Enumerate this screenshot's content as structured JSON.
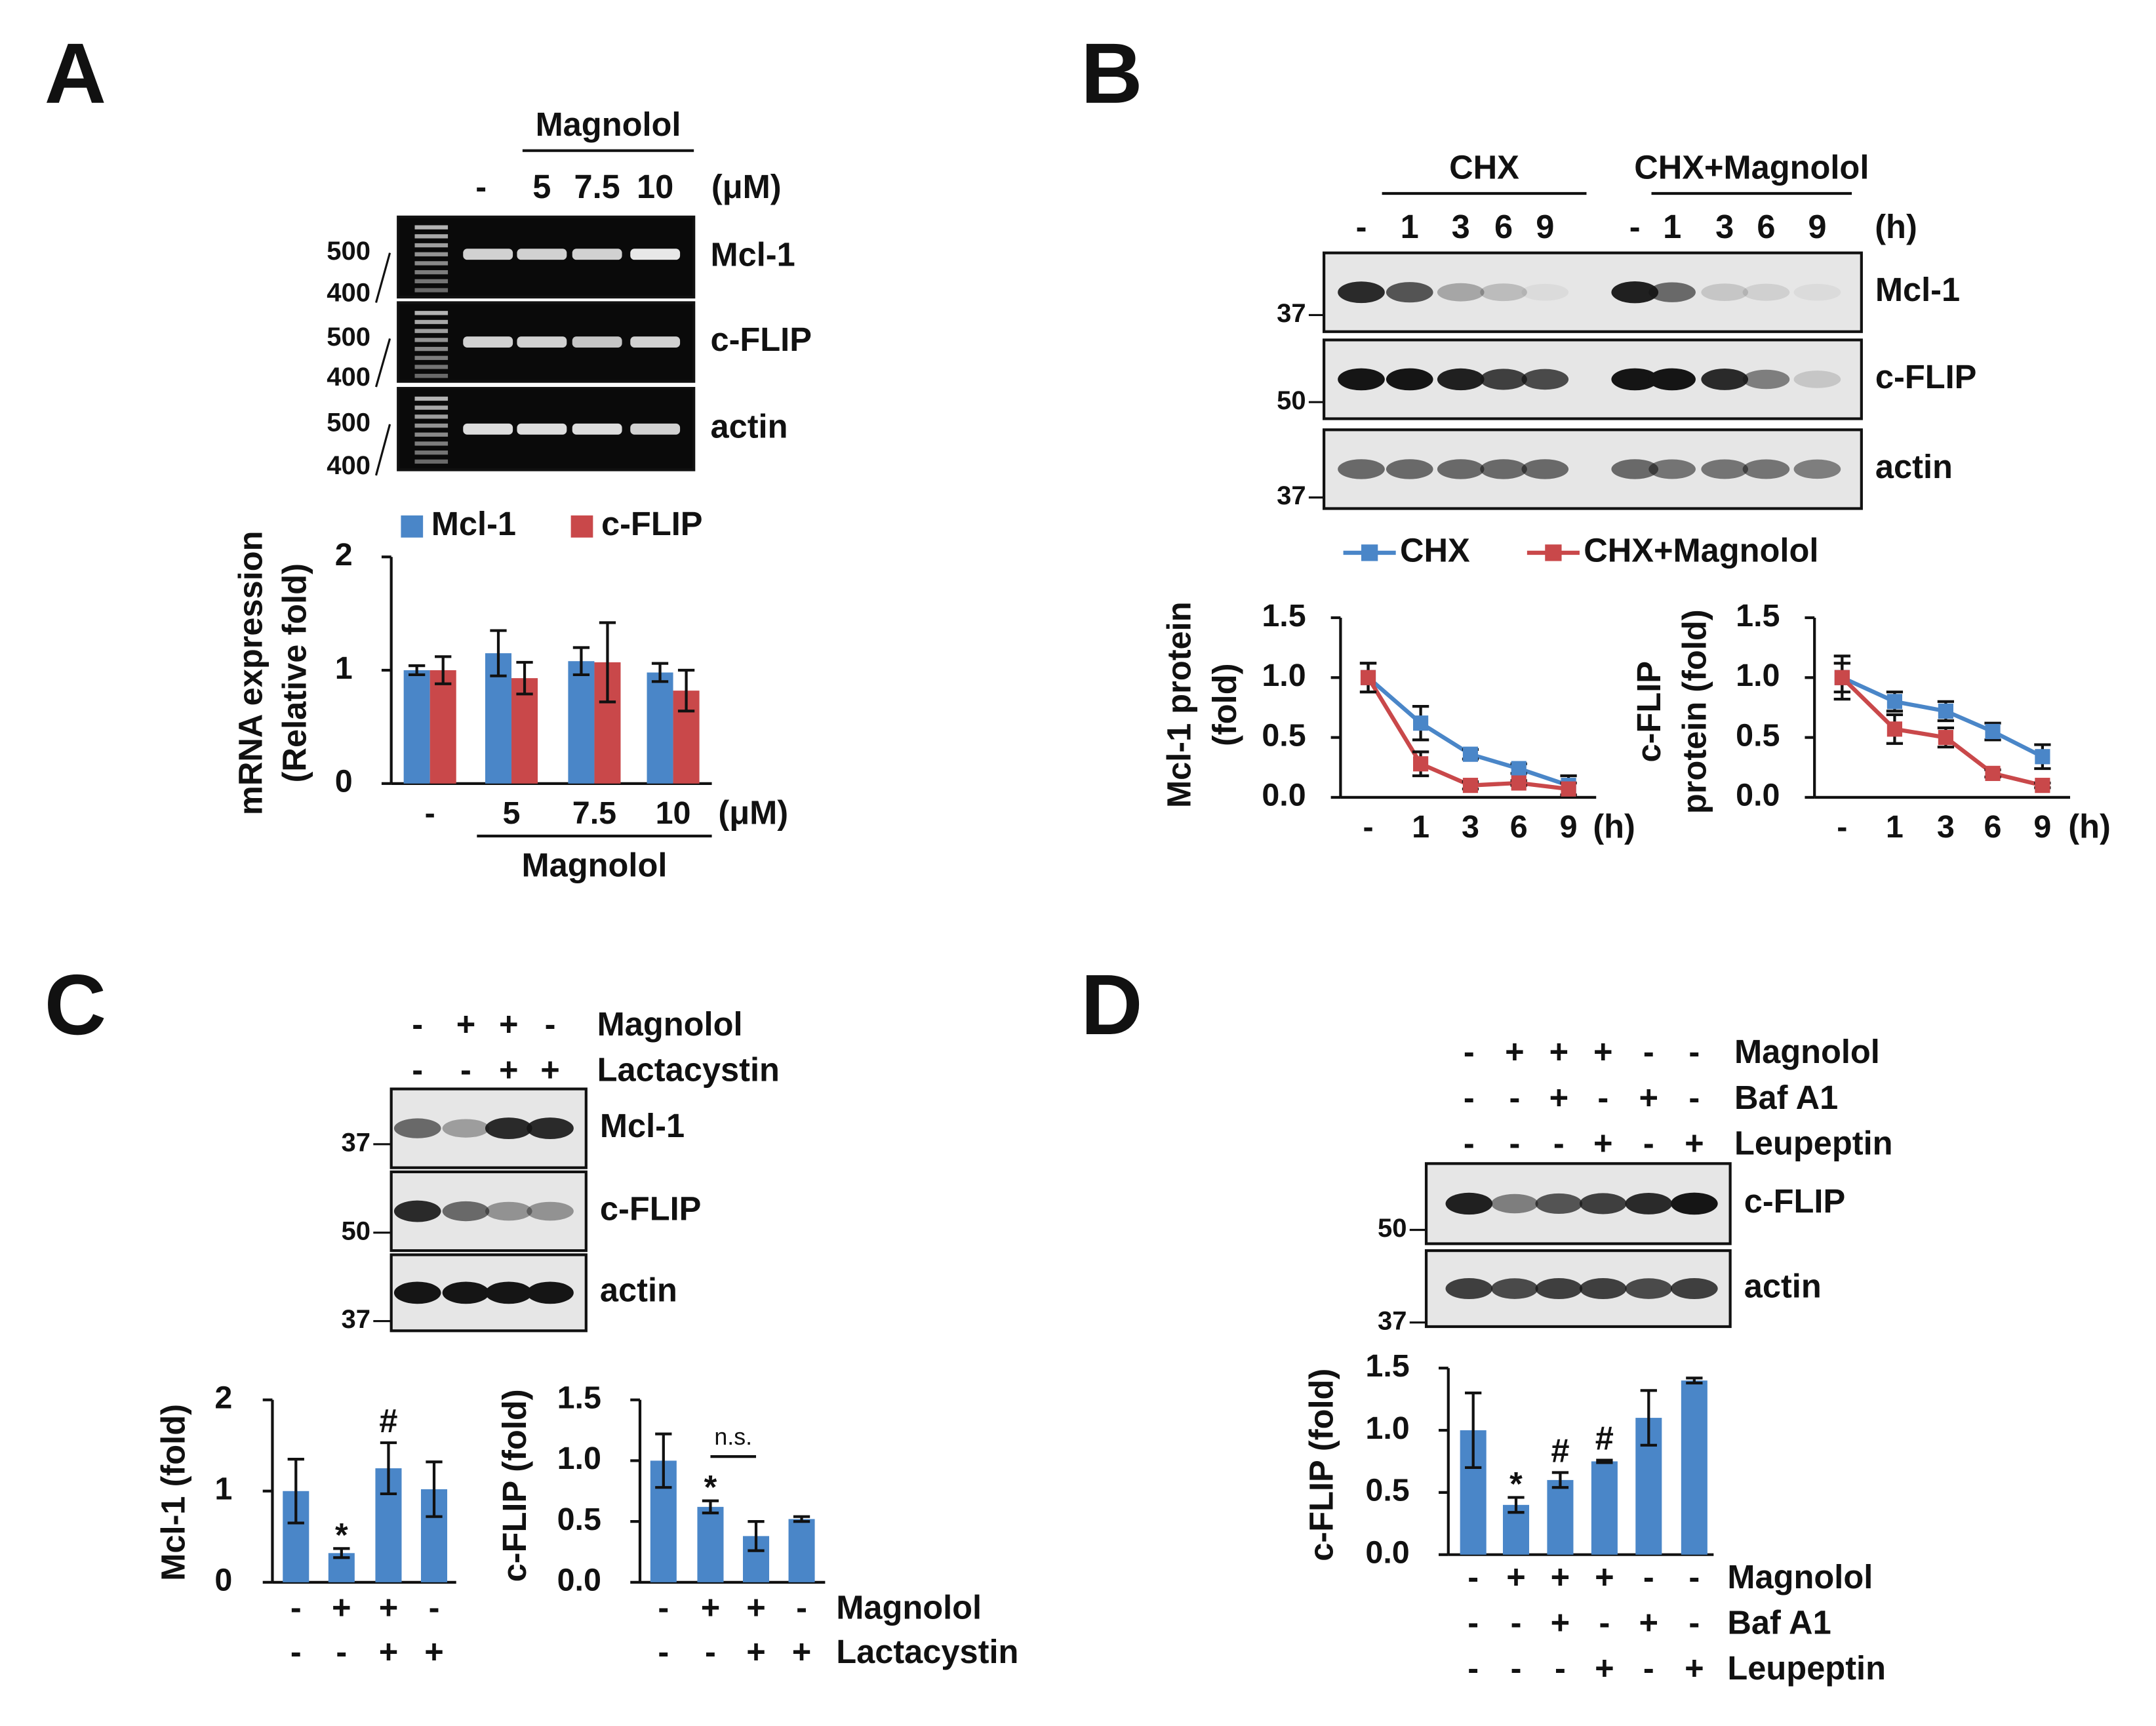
{
  "panel_labels": [
    "A",
    "B",
    "C",
    "D"
  ],
  "blots": [
    {
      "header_groups": [
        {
          "label": "Magnolol"
        }
      ],
      "lanes": [
        "-",
        "5",
        "7.5",
        "10"
      ],
      "unit": "(μM)",
      "rows": [
        {
          "label": "Mcl-1",
          "markers": [
            "500",
            "400"
          ]
        },
        {
          "label": "c-FLIP",
          "markers": [
            "500",
            "400"
          ]
        },
        {
          "label": "actin",
          "markers": [
            "500",
            "400"
          ]
        }
      ]
    },
    {
      "header_groups": [
        {
          "label": "CHX"
        },
        {
          "label": "CHX+Magnolol"
        }
      ],
      "lanes": [
        "-",
        "1",
        "3",
        "6",
        "9",
        "-",
        "1",
        "3",
        "6",
        "9"
      ],
      "unit": "(h)",
      "rows": [
        {
          "label": "Mcl-1",
          "markers": [
            "37"
          ]
        },
        {
          "label": "c-FLIP",
          "markers": [
            "50"
          ]
        },
        {
          "label": "actin",
          "markers": [
            "37"
          ]
        }
      ]
    },
    {
      "conditions": [
        {
          "name": "Magnolol",
          "values": [
            "-",
            "+",
            "+",
            "-"
          ]
        },
        {
          "name": "Lactacystin",
          "values": [
            "-",
            "-",
            "+",
            "+"
          ]
        }
      ],
      "rows": [
        {
          "label": "Mcl-1",
          "markers": [
            "37"
          ]
        },
        {
          "label": "c-FLIP",
          "markers": [
            "50"
          ]
        },
        {
          "label": "actin",
          "markers": [
            "37"
          ]
        }
      ]
    },
    {
      "conditions": [
        {
          "name": "Magnolol",
          "values": [
            "-",
            "+",
            "+",
            "+",
            "-",
            "-"
          ]
        },
        {
          "name": "Baf A1",
          "values": [
            "-",
            "-",
            "+",
            "-",
            "+",
            "-"
          ]
        },
        {
          "name": "Leupeptin",
          "values": [
            "-",
            "-",
            "-",
            "+",
            "-",
            "+"
          ]
        }
      ],
      "rows": [
        {
          "label": "c-FLIP",
          "markers": [
            "50"
          ]
        },
        {
          "label": "actin",
          "markers": [
            "37"
          ]
        }
      ]
    }
  ],
  "chart_data": [
    {
      "type": "bar",
      "ylabel": [
        "mRNA expression",
        "(Relative fold)"
      ],
      "categories": [
        "-",
        "5",
        "7.5",
        "10"
      ],
      "unit": "(μM)",
      "group_label": "Magnolol",
      "ylim": [
        0,
        2
      ],
      "yticks": [
        0,
        1,
        2
      ],
      "series": [
        {
          "name": "Mcl-1",
          "color": "#4a86c8",
          "values": [
            1.0,
            1.15,
            1.08,
            0.98
          ],
          "errors": [
            0.04,
            0.2,
            0.12,
            0.08
          ]
        },
        {
          "name": "c-FLIP",
          "color": "#c9484a",
          "values": [
            1.0,
            0.93,
            1.07,
            0.82
          ],
          "errors": [
            0.12,
            0.14,
            0.35,
            0.18
          ]
        }
      ]
    },
    {
      "type": "line",
      "ylabel": [
        "Mcl-1 protein",
        "(fold)"
      ],
      "categories": [
        "-",
        "1",
        "3",
        "6",
        "9"
      ],
      "unit": "(h)",
      "ylim": [
        0,
        1.5
      ],
      "yticks": [
        {
          "value": 0,
          "label": "0.0"
        },
        0.5,
        {
          "value": 1,
          "label": "1.0"
        },
        1.5
      ],
      "series": [
        {
          "name": "CHX",
          "color": "#4a86c8",
          "values": [
            1.0,
            0.62,
            0.36,
            0.24,
            0.1
          ],
          "errors": [
            0.12,
            0.14,
            0.04,
            0.04,
            0.08
          ]
        },
        {
          "name": "CHX+Magnolol",
          "color": "#c9484a",
          "values": [
            1.0,
            0.28,
            0.1,
            0.12,
            0.07
          ],
          "errors": [
            0.12,
            0.1,
            0.03,
            0.02,
            0.05
          ]
        }
      ]
    },
    {
      "type": "line",
      "ylabel": [
        "c-FLIP",
        "protein (fold)"
      ],
      "categories": [
        "-",
        "1",
        "3",
        "6",
        "9"
      ],
      "unit": "(h)",
      "ylim": [
        0,
        1.5
      ],
      "yticks": [
        {
          "value": 0,
          "label": "0.0"
        },
        0.5,
        {
          "value": 1,
          "label": "1.0"
        },
        1.5
      ],
      "series": [
        {
          "color": "#4a86c8",
          "values": [
            1.0,
            0.8,
            0.72,
            0.55,
            0.34
          ],
          "errors": [
            0.18,
            0.08,
            0.08,
            0.07,
            0.1
          ]
        },
        {
          "color": "#c9484a",
          "values": [
            1.0,
            0.57,
            0.5,
            0.2,
            0.1
          ],
          "errors": [
            0.12,
            0.12,
            0.08,
            0.03,
            0.02
          ]
        }
      ]
    },
    {
      "type": "bar",
      "ylabel": [
        "Mcl-1 (fold)"
      ],
      "ylim": [
        0,
        2
      ],
      "yticks": [
        0,
        1,
        2
      ],
      "color": "#4a86c8",
      "values": [
        1.0,
        0.32,
        1.25,
        1.02
      ],
      "errors": [
        0.35,
        0.05,
        0.28,
        0.3
      ],
      "conditions": [
        {
          "values": [
            "-",
            "+",
            "+",
            "-"
          ]
        },
        {
          "values": [
            "-",
            "-",
            "+",
            "+"
          ]
        }
      ],
      "annotations": [
        {
          "index": 1,
          "text": "*"
        },
        {
          "index": 2,
          "text": "#"
        }
      ]
    },
    {
      "type": "bar",
      "ylabel": [
        "c-FLIP (fold)"
      ],
      "ylim": [
        0,
        1.5
      ],
      "yticks": [
        {
          "value": 0,
          "label": "0.0"
        },
        0.5,
        {
          "value": 1,
          "label": "1.0"
        },
        1.5
      ],
      "color": "#4a86c8",
      "values": [
        1.0,
        0.62,
        0.38,
        0.52
      ],
      "errors": [
        0.22,
        0.05,
        0.12,
        0.02
      ],
      "conditions": [
        {
          "name": "Magnolol",
          "values": [
            "-",
            "+",
            "+",
            "-"
          ]
        },
        {
          "name": "Lactacystin",
          "values": [
            "-",
            "-",
            "+",
            "+"
          ]
        }
      ],
      "annotations": [
        {
          "index": 1,
          "text": "*"
        }
      ],
      "brackets": [
        {
          "from": 1,
          "to": 2,
          "text": "n.s."
        }
      ]
    },
    {
      "type": "bar",
      "ylabel": [
        "c-FLIP (fold)"
      ],
      "ylim": [
        0,
        1.5
      ],
      "yticks": [
        {
          "value": 0,
          "label": "0.0"
        },
        0.5,
        {
          "value": 1,
          "label": "1.0"
        },
        1.5
      ],
      "color": "#4a86c8",
      "values": [
        1.0,
        0.4,
        0.6,
        0.75,
        1.1,
        1.4
      ],
      "errors": [
        0.3,
        0.06,
        0.06,
        0.01,
        0.22,
        0.02
      ],
      "conditions": [
        {
          "name": "Magnolol",
          "values": [
            "-",
            "+",
            "+",
            "+",
            "-",
            "-"
          ]
        },
        {
          "name": "Baf A1",
          "values": [
            "-",
            "-",
            "+",
            "-",
            "+",
            "-"
          ]
        },
        {
          "name": "Leupeptin",
          "values": [
            "-",
            "-",
            "-",
            "+",
            "-",
            "+"
          ]
        }
      ],
      "annotations": [
        {
          "index": 1,
          "text": "*"
        },
        {
          "index": 2,
          "text": "#"
        },
        {
          "index": 3,
          "text": "#"
        }
      ]
    }
  ]
}
